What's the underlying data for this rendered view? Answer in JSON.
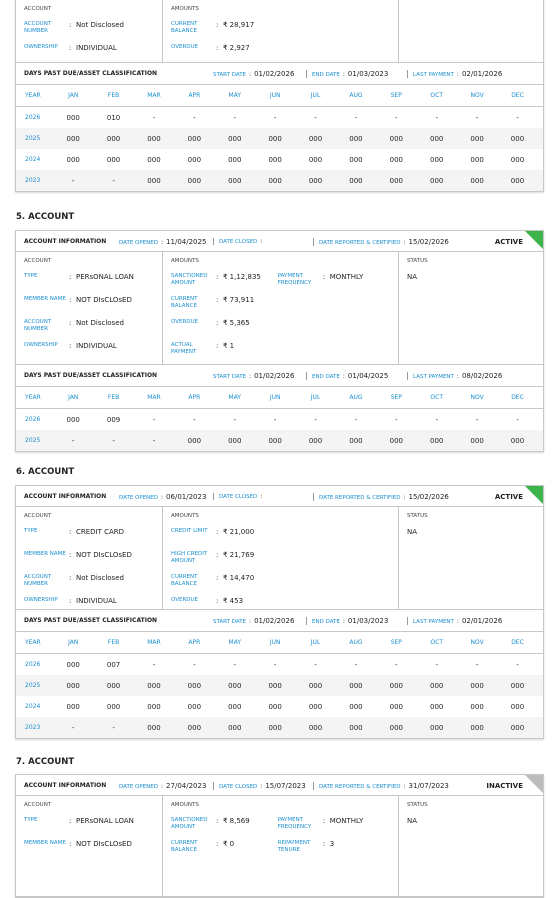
{
  "separator": ":",
  "months": [
    "YEAR",
    "JAN",
    "FEB",
    "MAR",
    "APR",
    "MAY",
    "JUN",
    "JUL",
    "AUG",
    "SEP",
    "OCT",
    "NOV",
    "DEC"
  ],
  "sections": [
    {
      "columns": [
        {
          "title": "ACCOUNT",
          "groups": [
            [
              {
                "label": "ACCOUNT NUMBER",
                "value": "Not Disclosed"
              },
              {
                "label": "OWNERSHIP",
                "value": "INDIVIDUAL"
              }
            ]
          ]
        },
        {
          "title": "AMOUNTS",
          "groups": [
            [
              {
                "label": "CURRENT BALANCE",
                "value": "₹ 28,917"
              },
              {
                "label": "OVERDUE",
                "value": "₹ 2,927"
              }
            ]
          ]
        }
      ],
      "dpd": {
        "title": "DAYS PAST DUE/ASSET CLASSIFICATION",
        "meta": [
          {
            "label": "START DATE",
            "value": "01/02/2026"
          },
          {
            "label": "END DATE",
            "value": "01/03/2023"
          },
          {
            "label": "LAST PAYMENT",
            "value": "02/01/2026"
          }
        ],
        "rows": [
          [
            "2026",
            "000",
            "010",
            "-",
            "-",
            "-",
            "-",
            "-",
            "-",
            "-",
            "-",
            "-",
            "-"
          ],
          [
            "2025",
            "000",
            "000",
            "000",
            "000",
            "000",
            "000",
            "000",
            "000",
            "000",
            "000",
            "000",
            "000"
          ],
          [
            "2024",
            "000",
            "000",
            "000",
            "000",
            "000",
            "000",
            "000",
            "000",
            "000",
            "000",
            "000",
            "000"
          ],
          [
            "2023",
            "-",
            "-",
            "000",
            "000",
            "000",
            "000",
            "000",
            "000",
            "000",
            "000",
            "000",
            "000"
          ]
        ]
      }
    },
    {
      "heading": "5. ACCOUNT",
      "info": {
        "title": "ACCOUNT INFORMATION",
        "items": [
          {
            "label": "DATE OPENED",
            "value": "11/04/2025"
          },
          {
            "label": "DATE CLOSED"
          },
          {
            "label": "DATE REPORTED & CERTIFIED",
            "value": "15/02/2026"
          }
        ],
        "badge": "ACTIVE",
        "badge_color": "#3cb44b"
      },
      "columns": [
        {
          "title": "ACCOUNT",
          "groups": [
            [
              {
                "label": "TYPE",
                "value": "PERsONAL LOAN"
              },
              {
                "label": "MEMBER NAME",
                "value": "NOT DIsCLOsED"
              },
              {
                "label": "ACCOUNT NUMBER",
                "value": "Not Disclosed"
              },
              {
                "label": "OWNERSHIP",
                "value": "INDIVIDUAL"
              }
            ]
          ]
        },
        {
          "title": "AMOUNTS",
          "groups": [
            [
              {
                "label": "SANCTIONED AMOUNT",
                "value": "₹ 1,12,835"
              },
              {
                "label": "CURRENT BALANCE",
                "value": "₹ 73,911"
              },
              {
                "label": "OVERDUE",
                "value": "₹ 5,365"
              },
              {
                "label": "ACTUAL PAYMENT",
                "value": "₹ 1"
              }
            ],
            [
              {
                "label": "PAYMENT FREQUENCY",
                "value": "MONTHLY"
              }
            ]
          ]
        },
        {
          "title": "STATUS",
          "groups": [
            [
              {
                "value": "NA"
              }
            ]
          ]
        }
      ],
      "dpd": {
        "title": "DAYS PAST DUE/ASSET CLASSIFICATION",
        "meta": [
          {
            "label": "START DATE",
            "value": "01/02/2026"
          },
          {
            "label": "END DATE",
            "value": "01/04/2025"
          },
          {
            "label": "LAST PAYMENT",
            "value": "08/02/2026"
          }
        ],
        "rows": [
          [
            "2026",
            "000",
            "009",
            "-",
            "-",
            "-",
            "-",
            "-",
            "-",
            "-",
            "-",
            "-",
            "-"
          ],
          [
            "2025",
            "-",
            "-",
            "-",
            "000",
            "000",
            "000",
            "000",
            "000",
            "000",
            "000",
            "000",
            "000"
          ]
        ]
      }
    },
    {
      "heading": "6. ACCOUNT",
      "info": {
        "title": "ACCOUNT INFORMATION",
        "items": [
          {
            "label": "DATE OPENED",
            "value": "06/01/2023"
          },
          {
            "label": "DATE CLOSED"
          },
          {
            "label": "DATE REPORTED & CERTIFIED",
            "value": "15/02/2026"
          }
        ],
        "badge": "ACTIVE",
        "badge_color": "#3cb44b"
      },
      "columns": [
        {
          "title": "ACCOUNT",
          "groups": [
            [
              {
                "label": "TYPE",
                "value": "CREDIT CARD"
              },
              {
                "label": "MEMBER NAME",
                "value": "NOT DIsCLOsED"
              },
              {
                "label": "ACCOUNT NUMBER",
                "value": "Not Disclosed"
              },
              {
                "label": "OWNERSHIP",
                "value": "INDIVIDUAL"
              }
            ]
          ]
        },
        {
          "title": "AMOUNTS",
          "groups": [
            [
              {
                "label": "CREDIT LIMIT",
                "value": "₹ 21,000"
              },
              {
                "label": "HIGH CREDIT AMOUNT",
                "value": "₹ 21,769"
              },
              {
                "label": "CURRENT BALANCE",
                "value": "₹ 14,470"
              },
              {
                "label": "OVERDUE",
                "value": "₹ 453"
              }
            ]
          ]
        },
        {
          "title": "STATUS",
          "groups": [
            [
              {
                "value": "NA"
              }
            ]
          ]
        }
      ],
      "dpd": {
        "title": "DAYS PAST DUE/ASSET CLASSIFICATION",
        "meta": [
          {
            "label": "START DATE",
            "value": "01/02/2026"
          },
          {
            "label": "END DATE",
            "value": "01/03/2023"
          },
          {
            "label": "LAST PAYMENT",
            "value": "02/01/2026"
          }
        ],
        "rows": [
          [
            "2026",
            "000",
            "007",
            "-",
            "-",
            "-",
            "-",
            "-",
            "-",
            "-",
            "-",
            "-",
            "-"
          ],
          [
            "2025",
            "000",
            "000",
            "000",
            "000",
            "000",
            "000",
            "000",
            "000",
            "000",
            "000",
            "000",
            "000"
          ],
          [
            "2024",
            "000",
            "000",
            "000",
            "000",
            "000",
            "000",
            "000",
            "000",
            "000",
            "000",
            "000",
            "000"
          ],
          [
            "2023",
            "-",
            "-",
            "000",
            "000",
            "000",
            "000",
            "000",
            "000",
            "000",
            "000",
            "000",
            "000"
          ]
        ]
      }
    },
    {
      "heading": "7. ACCOUNT",
      "info": {
        "title": "ACCOUNT INFORMATION",
        "items": [
          {
            "label": "DATE OPENED",
            "value": "27/04/2023"
          },
          {
            "label": "DATE CLOSED",
            "value": "15/07/2023"
          },
          {
            "label": "DATE REPORTED & CERTIFIED",
            "value": "31/07/2023"
          }
        ],
        "badge": "INACTIVE",
        "badge_color": "#bdbdbd"
      },
      "columns": [
        {
          "title": "ACCOUNT",
          "groups": [
            [
              {
                "label": "TYPE",
                "value": "PERsONAL LOAN"
              },
              {
                "label": "MEMBER NAME",
                "value": "NOT DIsCLOsED"
              }
            ]
          ]
        },
        {
          "title": "AMOUNTS",
          "groups": [
            [
              {
                "label": "SANCTIONED AMOUNT",
                "value": "₹ 8,569"
              },
              {
                "label": "CURRENT BALANCE",
                "value": "₹ 0"
              }
            ],
            [
              {
                "label": "PAYMENT FREQUENCY",
                "value": "MONTHLY"
              },
              {
                "label": "REPAYMENT TENURE",
                "value": "3"
              }
            ]
          ]
        },
        {
          "title": "STATUS",
          "groups": [
            [
              {
                "value": "NA"
              }
            ]
          ]
        }
      ]
    }
  ]
}
